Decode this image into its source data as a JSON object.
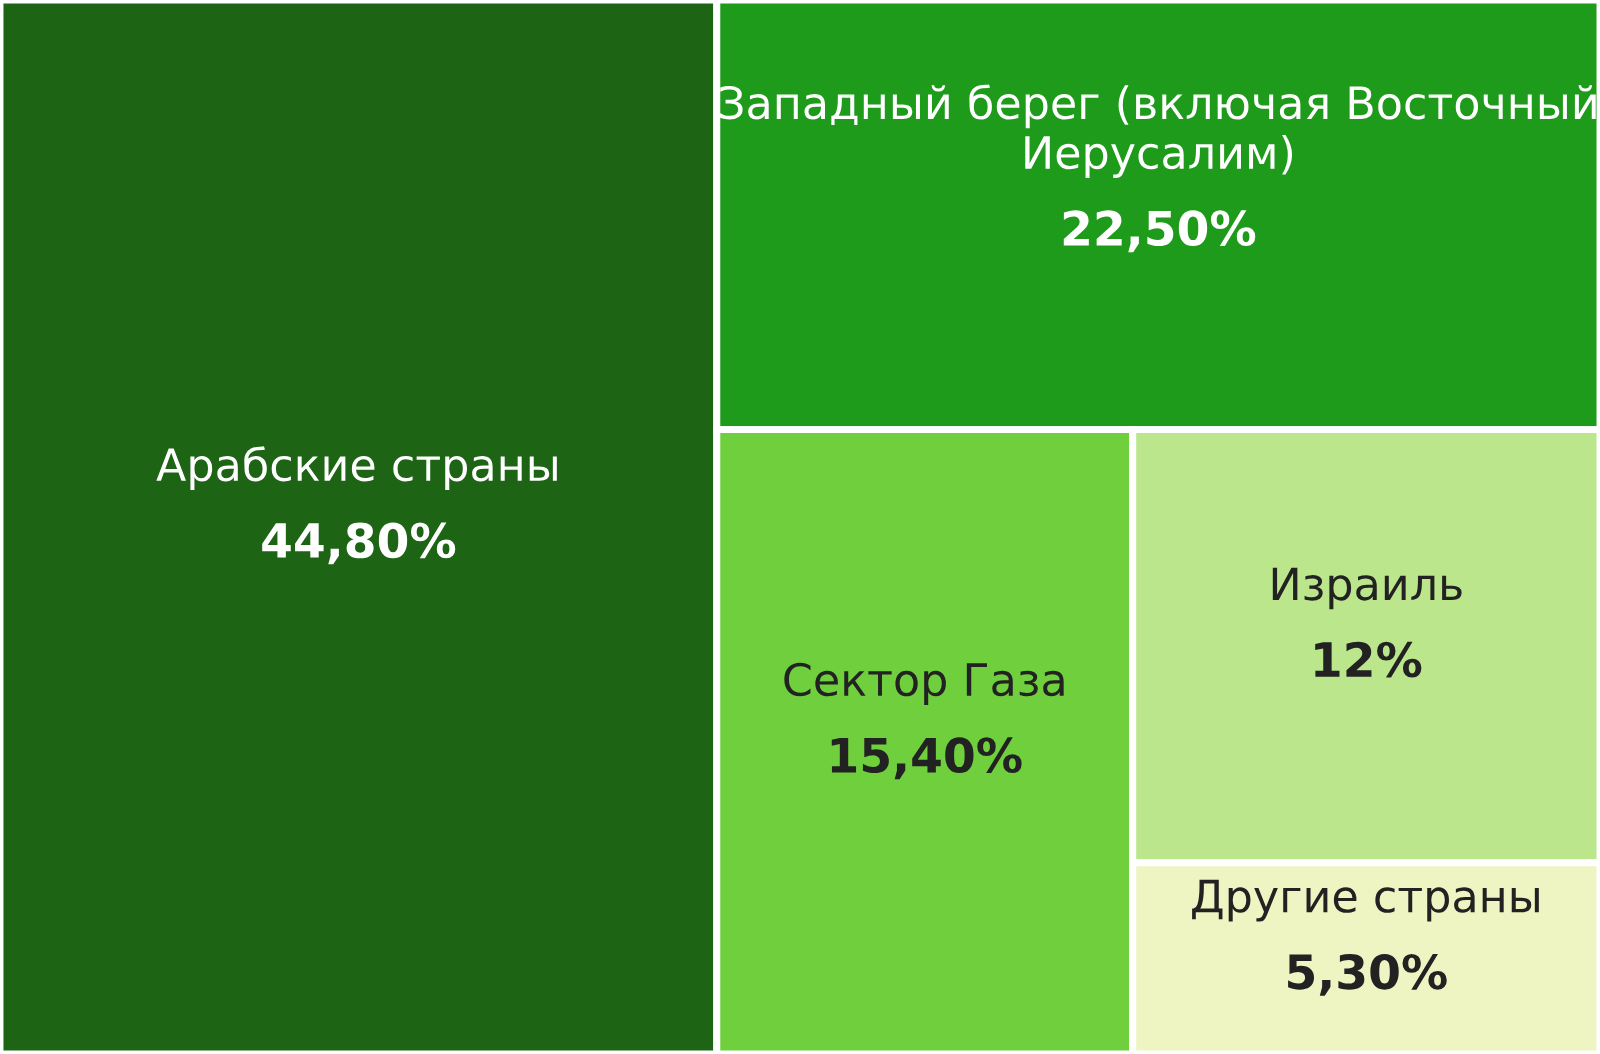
{
  "chart_data": {
    "type": "other",
    "categories": [
      "Арабские страны",
      "Западный берег (включая Восточный Иерусалим)",
      "Сектор Газа",
      "Израиль",
      "Другие страны"
    ],
    "values": [
      44.8,
      22.5,
      15.4,
      12,
      5.3
    ],
    "value_labels": [
      "44,80%",
      "22,50%",
      "15,40%",
      "12%",
      "5,30%"
    ],
    "colors": [
      "#1d6414",
      "#1f9b1c",
      "#6fcf3c",
      "#bbe68c",
      "#eef5c2"
    ]
  }
}
